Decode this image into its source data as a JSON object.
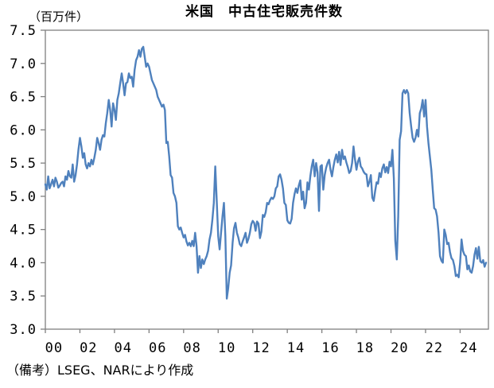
{
  "title": "米国　中古住宅販売件数",
  "y_axis": {
    "unit_label": "（百万件）",
    "tick_labels": [
      "7.5",
      "7.0",
      "6.5",
      "6.0",
      "5.5",
      "5.0",
      "4.5",
      "4.0",
      "3.5",
      "3.0"
    ]
  },
  "x_axis": {
    "tick_labels": [
      "00",
      "02",
      "04",
      "06",
      "08",
      "10",
      "12",
      "14",
      "16",
      "18",
      "20",
      "22",
      "24"
    ]
  },
  "footnote": "（備考）LSEG、NARにより作成",
  "colors": {
    "line": "#4f81bd",
    "axis": "#808080",
    "text": "#000000",
    "background": "#ffffff"
  },
  "chart_data": {
    "type": "line",
    "title": "米国　中古住宅販売件数",
    "ylabel": "（百万件）",
    "unit": "millions of units, annualized",
    "ylim": [
      3.0,
      7.5
    ],
    "y_tick_step": 0.5,
    "grid": false,
    "legend": false,
    "frequency": "monthly",
    "x_start": "2000-01",
    "x_end": "2025-07",
    "series": [
      {
        "name": "米国中古住宅販売件数",
        "values": [
          5.18,
          5.1,
          5.3,
          5.12,
          5.18,
          5.25,
          5.15,
          5.28,
          5.22,
          5.13,
          5.16,
          5.2,
          5.22,
          5.15,
          5.3,
          5.25,
          5.38,
          5.3,
          5.28,
          5.48,
          5.22,
          5.32,
          5.48,
          5.7,
          5.88,
          5.75,
          5.58,
          5.65,
          5.48,
          5.42,
          5.5,
          5.45,
          5.55,
          5.48,
          5.58,
          5.7,
          5.88,
          5.8,
          5.7,
          5.85,
          5.92,
          5.9,
          6.1,
          6.25,
          6.45,
          6.3,
          6.05,
          6.4,
          6.3,
          6.15,
          6.45,
          6.55,
          6.7,
          6.85,
          6.7,
          6.52,
          6.7,
          6.72,
          6.85,
          6.78,
          6.8,
          6.65,
          6.9,
          7.05,
          7.1,
          7.2,
          7.1,
          7.22,
          7.25,
          7.1,
          6.95,
          7.0,
          6.95,
          6.85,
          6.75,
          6.7,
          6.65,
          6.6,
          6.5,
          6.45,
          6.4,
          6.35,
          6.38,
          6.3,
          5.8,
          5.82,
          5.6,
          5.32,
          5.28,
          5.05,
          5.0,
          4.9,
          4.55,
          4.5,
          4.53,
          4.45,
          4.38,
          4.42,
          4.32,
          4.26,
          4.3,
          4.25,
          4.33,
          4.25,
          4.45,
          4.25,
          3.85,
          4.1,
          3.92,
          4.05,
          3.98,
          4.05,
          4.1,
          4.18,
          4.35,
          4.45,
          4.65,
          4.9,
          5.45,
          4.95,
          4.4,
          4.2,
          4.45,
          4.7,
          4.9,
          4.4,
          3.46,
          3.62,
          3.85,
          3.96,
          4.3,
          4.52,
          4.6,
          4.45,
          4.38,
          4.28,
          4.25,
          4.32,
          4.38,
          4.45,
          4.3,
          4.36,
          4.45,
          4.58,
          4.63,
          4.6,
          4.48,
          4.62,
          4.59,
          4.37,
          4.47,
          4.72,
          4.69,
          4.76,
          4.9,
          4.88,
          4.94,
          4.98,
          4.96,
          5.0,
          5.12,
          5.15,
          5.3,
          5.33,
          5.25,
          5.12,
          4.9,
          4.87,
          4.64,
          4.6,
          4.59,
          4.66,
          4.9,
          5.03,
          5.12,
          5.05,
          5.16,
          5.24,
          4.95,
          5.07,
          4.82,
          4.9,
          5.21,
          5.1,
          5.3,
          5.45,
          5.55,
          5.3,
          5.5,
          5.36,
          4.78,
          5.45,
          5.47,
          5.1,
          5.32,
          5.43,
          5.5,
          5.55,
          5.4,
          5.3,
          5.44,
          5.55,
          5.63,
          5.51,
          5.67,
          5.47,
          5.7,
          5.56,
          5.6,
          5.51,
          5.44,
          5.35,
          5.38,
          5.5,
          5.75,
          5.56,
          5.4,
          5.52,
          5.58,
          5.45,
          5.42,
          5.37,
          5.34,
          5.33,
          5.15,
          5.22,
          5.32,
          4.98,
          4.93,
          5.08,
          5.21,
          5.19,
          5.35,
          5.29,
          5.42,
          5.48,
          5.36,
          5.44,
          5.35,
          5.52,
          5.45,
          5.7,
          5.27,
          4.33,
          4.05,
          4.7,
          5.85,
          5.98,
          6.55,
          6.6,
          6.55,
          6.6,
          6.55,
          6.25,
          6.05,
          5.88,
          5.82,
          5.88,
          6.0,
          5.9,
          6.25,
          6.32,
          6.45,
          6.2,
          6.45,
          6.05,
          5.8,
          5.6,
          5.4,
          5.1,
          4.82,
          4.8,
          4.7,
          4.45,
          4.1,
          4.03,
          4.0,
          4.5,
          4.42,
          4.28,
          4.3,
          4.16,
          4.07,
          4.04,
          3.95,
          3.8,
          3.82,
          3.78,
          4.0,
          4.35,
          4.18,
          4.12,
          4.1,
          3.9,
          3.96,
          3.87,
          3.85,
          3.95,
          4.12,
          4.22,
          4.06,
          4.24,
          4.02,
          4.0,
          4.04,
          3.94,
          4.0
        ]
      }
    ]
  }
}
